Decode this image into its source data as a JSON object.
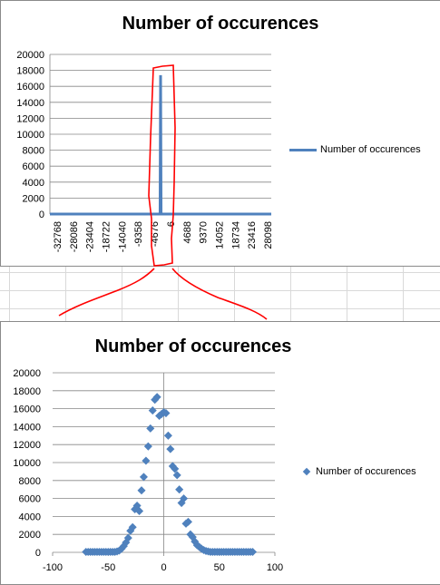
{
  "chart_data": [
    {
      "type": "line",
      "title": "Number of occurences",
      "legend": "Number of occurences",
      "legend_position": "right",
      "grid": true,
      "ylim": [
        0,
        20000
      ],
      "yticks": [
        0,
        2000,
        4000,
        6000,
        8000,
        10000,
        12000,
        14000,
        16000,
        18000,
        20000
      ],
      "xtick_labels": [
        "-32768",
        "-28086",
        "-23404",
        "-18722",
        "-14040",
        "-9358",
        "-4676",
        "6",
        "4688",
        "9370",
        "14052",
        "18734",
        "23416",
        "28098"
      ],
      "series": [
        {
          "name": "Number of occurences",
          "color": "#4f81bd",
          "x": [
            -32768,
            -4676,
            -150,
            0,
            150,
            4688,
            32767
          ],
          "y": [
            0,
            0,
            0,
            17400,
            0,
            0,
            0
          ]
        }
      ],
      "annotation_color": "#ff0000"
    },
    {
      "type": "scatter",
      "title": "Number of occurences",
      "legend": "Number of occurences",
      "legend_position": "right",
      "grid": true,
      "xlim": [
        -100,
        100
      ],
      "ylim": [
        0,
        20000
      ],
      "xticks": [
        -100,
        -50,
        0,
        50,
        100
      ],
      "yticks": [
        0,
        2000,
        4000,
        6000,
        8000,
        10000,
        12000,
        14000,
        16000,
        18000,
        20000
      ],
      "series": [
        {
          "name": "Number of occurences",
          "color": "#4f81bd",
          "x": [
            -70,
            -68,
            -66,
            -64,
            -62,
            -60,
            -58,
            -56,
            -54,
            -52,
            -50,
            -48,
            -46,
            -44,
            -42,
            -40,
            -38,
            -36,
            -34,
            -32,
            -30,
            -28,
            -26,
            -24,
            -22,
            -20,
            -18,
            -16,
            -14,
            -12,
            -10,
            -8,
            -6,
            -4,
            -2,
            0,
            2,
            4,
            6,
            8,
            10,
            12,
            14,
            16,
            18,
            20,
            22,
            24,
            26,
            28,
            30,
            32,
            34,
            36,
            38,
            40,
            42,
            44,
            46,
            48,
            50,
            52,
            54,
            56,
            58,
            60,
            62,
            64,
            66,
            68,
            70,
            72,
            74,
            76,
            78,
            80
          ],
          "y": [
            50,
            50,
            50,
            50,
            50,
            50,
            50,
            50,
            50,
            50,
            50,
            50,
            50,
            50,
            100,
            200,
            400,
            700,
            1100,
            1600,
            2400,
            2800,
            4800,
            5200,
            4600,
            6900,
            8400,
            10200,
            11800,
            13800,
            15800,
            17000,
            17300,
            15200,
            15400,
            15600,
            15500,
            13000,
            11500,
            9600,
            9300,
            8600,
            7000,
            5500,
            6000,
            3200,
            3400,
            2000,
            1700,
            1200,
            800,
            600,
            400,
            250,
            150,
            100,
            50,
            50,
            50,
            50,
            50,
            50,
            50,
            50,
            50,
            50,
            50,
            50,
            50,
            50,
            50,
            50,
            50,
            50,
            50,
            50
          ]
        }
      ]
    }
  ]
}
